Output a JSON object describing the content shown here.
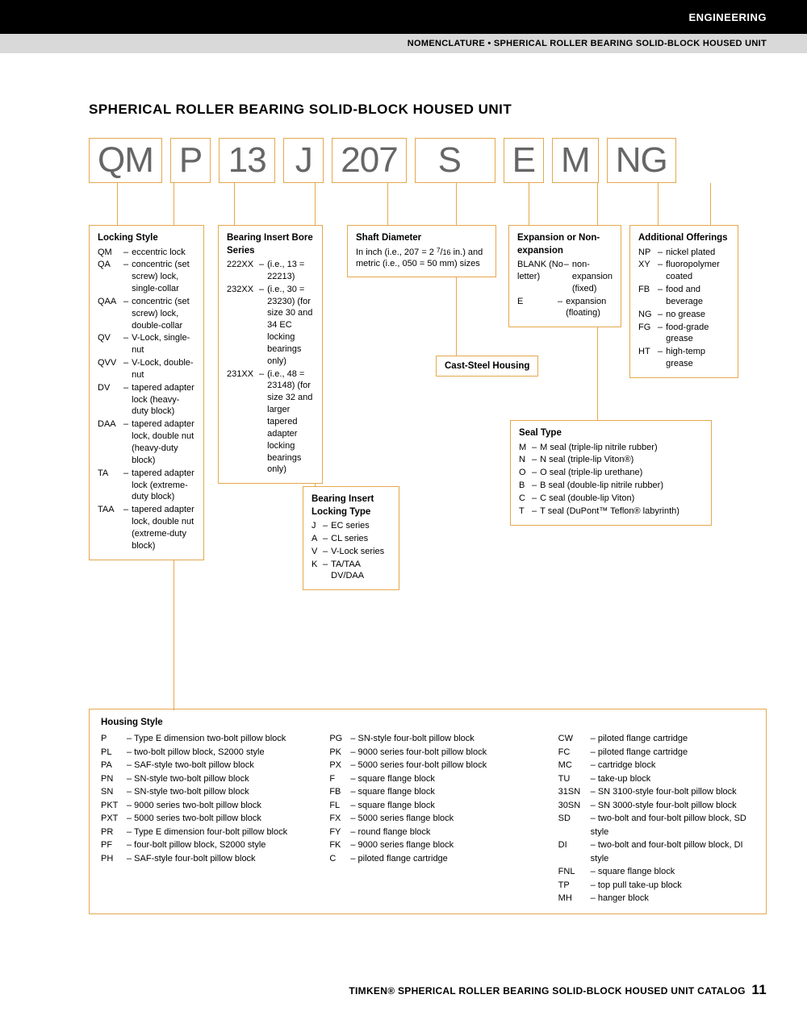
{
  "header": {
    "engineering": "ENGINEERING",
    "subtitle": "NOMENCLATURE • SPHERICAL ROLLER BEARING SOLID-BLOCK HOUSED UNIT"
  },
  "title": "SPHERICAL ROLLER BEARING SOLID-BLOCK HOUSED UNIT",
  "code": [
    "QM",
    "P",
    "13",
    "J",
    "207",
    "S",
    "E",
    "M",
    "NG"
  ],
  "locking_style": {
    "title": "Locking Style",
    "items": [
      [
        "QM",
        "eccentric lock"
      ],
      [
        "QA",
        "concentric (set screw) lock, single-collar"
      ],
      [
        "QAA",
        "concentric (set screw) lock, double-collar"
      ],
      [
        "QV",
        "V-Lock, single-nut"
      ],
      [
        "QVV",
        "V-Lock, double-nut"
      ],
      [
        "DV",
        "tapered adapter lock (heavy-duty block)"
      ],
      [
        "DAA",
        "tapered adapter lock, double nut (heavy-duty block)"
      ],
      [
        "TA",
        "tapered adapter lock (extreme-duty block)"
      ],
      [
        "TAA",
        "tapered adapter lock, double nut (extreme-duty block)"
      ]
    ]
  },
  "bore_series": {
    "title": "Bearing Insert Bore Series",
    "items": [
      [
        "222XX",
        "(i.e., 13 = 22213)"
      ],
      [
        "232XX",
        "(i.e., 30 = 23230) (for size 30 and 34 EC locking bearings only)"
      ],
      [
        "231XX",
        "(i.e., 48 = 23148) (for size 32 and larger tapered adapter locking bearings only)"
      ]
    ]
  },
  "locking_type": {
    "title": "Bearing Insert Locking Type",
    "items": [
      [
        "J",
        "EC series"
      ],
      [
        "A",
        "CL series"
      ],
      [
        "V",
        "V-Lock series"
      ],
      [
        "K",
        "TA/TAA DV/DAA"
      ]
    ]
  },
  "shaft_diameter": {
    "title": "Shaft Diameter",
    "text": "In inch (i.e., 207 = 2 7/16 in.) and metric (i.e., 050 = 50 mm) sizes"
  },
  "cast_steel": "Cast-Steel Housing",
  "expansion": {
    "title": "Expansion or Non-expansion",
    "items": [
      [
        "BLANK (No letter)",
        "non-expansion (fixed)"
      ],
      [
        "E",
        "expansion (floating)"
      ]
    ]
  },
  "seal_type": {
    "title": "Seal Type",
    "items": [
      [
        "M",
        "M seal (triple-lip nitrile rubber)"
      ],
      [
        "N",
        "N seal (triple-lip Viton®)"
      ],
      [
        "O",
        "O seal (triple-lip urethane)"
      ],
      [
        "B",
        "B seal (double-lip nitrile rubber)"
      ],
      [
        "C",
        "C seal (double-lip Viton)"
      ],
      [
        "T",
        "T seal (DuPont™ Teflon® labyrinth)"
      ]
    ]
  },
  "additional": {
    "title": "Additional Offerings",
    "items": [
      [
        "NP",
        "nickel plated"
      ],
      [
        "XY",
        "fluoropolymer coated"
      ],
      [
        "FB",
        "food and beverage"
      ],
      [
        "NG",
        "no grease"
      ],
      [
        "FG",
        "food-grade grease"
      ],
      [
        "HT",
        "high-temp grease"
      ]
    ]
  },
  "housing": {
    "title": "Housing Style",
    "col1": [
      [
        "P",
        "Type E dimension two-bolt pillow block"
      ],
      [
        "PL",
        "two-bolt pillow block, S2000 style"
      ],
      [
        "PA",
        "SAF-style two-bolt pillow block"
      ],
      [
        "PN",
        "SN-style two-bolt pillow block"
      ],
      [
        "SN",
        "SN-style two-bolt pillow block"
      ],
      [
        "PKT",
        "9000 series two-bolt pillow block"
      ],
      [
        "PXT",
        "5000 series two-bolt pillow block"
      ],
      [
        "PR",
        "Type E dimension four-bolt pillow block"
      ],
      [
        "PF",
        "four-bolt pillow block, S2000 style"
      ],
      [
        "PH",
        "SAF-style four-bolt pillow block"
      ]
    ],
    "col2": [
      [
        "PG",
        "SN-style four-bolt pillow block"
      ],
      [
        "PK",
        "9000 series four-bolt pillow block"
      ],
      [
        "PX",
        "5000 series four-bolt pillow block"
      ],
      [
        "F",
        "square flange block"
      ],
      [
        "FB",
        "square flange block"
      ],
      [
        "FL",
        "square flange block"
      ],
      [
        "FX",
        "5000 series flange block"
      ],
      [
        "FY",
        "round flange block"
      ],
      [
        "FK",
        "9000 series flange block"
      ],
      [
        "C",
        "piloted flange cartridge"
      ]
    ],
    "col3": [
      [
        "CW",
        "piloted flange cartridge"
      ],
      [
        "FC",
        "piloted flange cartridge"
      ],
      [
        "MC",
        "cartridge block"
      ],
      [
        "TU",
        "take-up block"
      ],
      [
        "31SN",
        "SN 3100-style four-bolt pillow block"
      ],
      [
        "30SN",
        "SN 3000-style four-bolt pillow block"
      ],
      [
        "SD",
        "two-bolt and four-bolt pillow block, SD style"
      ],
      [
        "DI",
        "two-bolt and four-bolt pillow block, DI style"
      ],
      [
        "FNL",
        "square flange block"
      ],
      [
        "TP",
        "top pull take-up block"
      ],
      [
        "MH",
        "hanger block"
      ]
    ]
  },
  "footer": {
    "text": "TIMKEN® SPHERICAL ROLLER BEARING SOLID-BLOCK HOUSED UNIT CATALOG",
    "page": "11"
  }
}
